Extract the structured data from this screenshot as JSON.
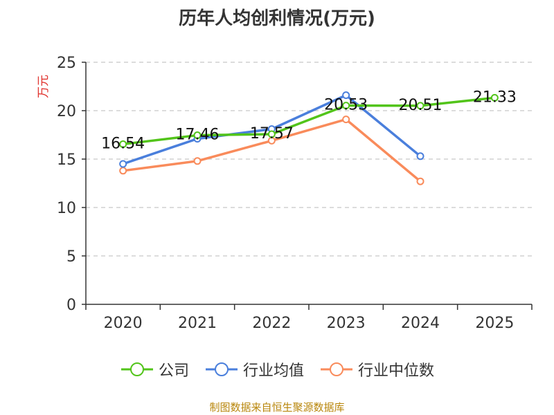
{
  "title": "历年人均创利情况(万元)",
  "source": "制图数据来自恒生聚源数据库",
  "colors": {
    "company": "#52c41a",
    "industry_avg": "#4a7fdc",
    "industry_median": "#f98b5b",
    "axis_label": "#e0312c"
  },
  "chart_data": {
    "type": "line",
    "title": "历年人均创利情况(万元)",
    "ylabel": "万元",
    "xlabel": "",
    "ylim": [
      0,
      25
    ],
    "yticks": [
      0,
      5,
      10,
      15,
      20,
      25
    ],
    "categories": [
      "2020",
      "2021",
      "2022",
      "2023",
      "2024",
      "2025"
    ],
    "grid": true,
    "legend": "bottom-center",
    "series": [
      {
        "name": "公司",
        "values": [
          16.54,
          17.46,
          17.57,
          20.53,
          20.51,
          21.33
        ],
        "labels": [
          "16.54",
          "17.46",
          "17.57",
          "20.53",
          "20.51",
          "21.33"
        ]
      },
      {
        "name": "行业均值",
        "values": [
          14.5,
          17.1,
          18.1,
          21.6,
          15.3,
          null
        ]
      },
      {
        "name": "行业中位数",
        "values": [
          13.8,
          14.8,
          16.9,
          19.1,
          12.7,
          null
        ]
      }
    ]
  }
}
